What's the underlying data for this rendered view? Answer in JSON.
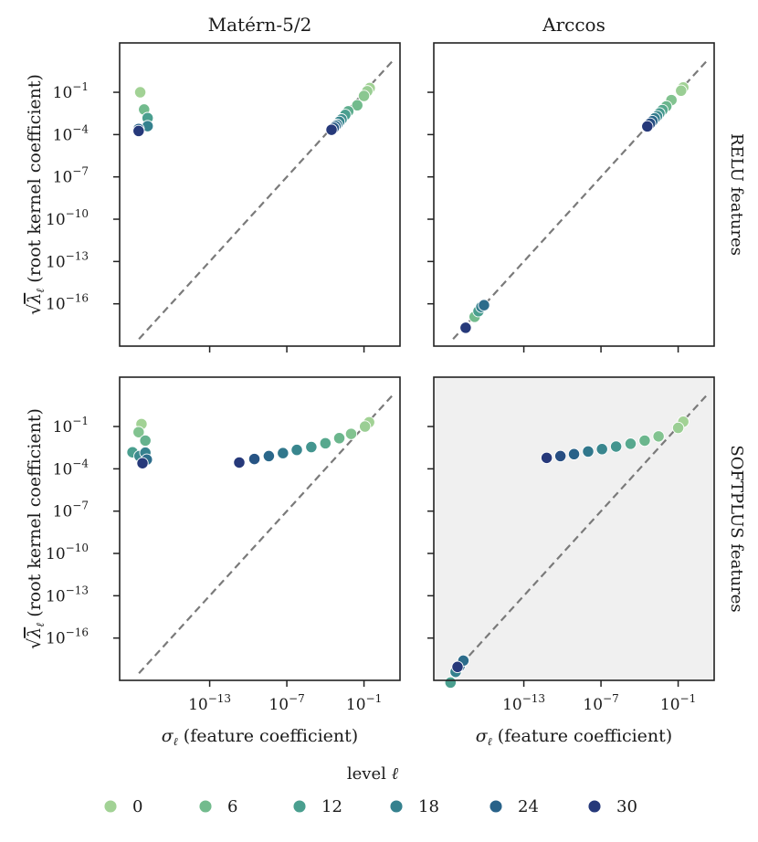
{
  "chart_data": {
    "type": "scatter",
    "x_scale": "log10",
    "y_scale": "log10",
    "xlim_log10": [
      -20,
      1.8
    ],
    "ylim_log10": [
      -19,
      2.5
    ],
    "diagonal": {
      "from_log10": -18.5,
      "to_log10": 1.2,
      "style": "dashed"
    },
    "column_titles": [
      "Matérn-5/2",
      "Arccos"
    ],
    "row_titles": [
      "RELU features",
      "SOFTPLUS features"
    ],
    "xlabel_symbol": "σ",
    "xlabel_sub": "ℓ",
    "xlabel_text": " (feature coefficient)",
    "ylabel_prefix": "√",
    "ylabel_symbol": "λ",
    "ylabel_sub": "ℓ",
    "ylabel_text": " (root kernel coefficient)",
    "x_ticks": [
      -13,
      -7,
      -1
    ],
    "y_ticks": [
      -1,
      -4,
      -7,
      -10,
      -13,
      -16
    ],
    "tick_base": "10",
    "legend": {
      "title_text": "level ",
      "title_symbol": "ℓ",
      "levels": [
        {
          "label": "0",
          "color": "#a2d295"
        },
        {
          "label": "6",
          "color": "#72bb8d"
        },
        {
          "label": "12",
          "color": "#4a9f8f"
        },
        {
          "label": "18",
          "color": "#35818e"
        },
        {
          "label": "24",
          "color": "#286289"
        },
        {
          "label": "30",
          "color": "#26397a"
        }
      ]
    },
    "panels": [
      {
        "row": 0,
        "col": 0,
        "shaded": false,
        "points": [
          {
            "x": 0.28,
            "y": 0.2,
            "level": 0
          },
          {
            "x": 0.18,
            "y": 0.12,
            "level": 1
          },
          {
            "x": 0.1,
            "y": 0.055,
            "level": 3
          },
          {
            "x": 0.03,
            "y": 0.012,
            "level": 6
          },
          {
            "x": 0.006,
            "y": 0.0045,
            "level": 9
          },
          {
            "x": 0.0035,
            "y": 0.0025,
            "level": 12
          },
          {
            "x": 0.0018,
            "y": 0.0012,
            "level": 15
          },
          {
            "x": 0.0012,
            "y": 0.0008,
            "level": 17
          },
          {
            "x": 0.0008,
            "y": 0.0005,
            "level": 20
          },
          {
            "x": 0.0006,
            "y": 0.0004,
            "level": 23
          },
          {
            "x": 0.00045,
            "y": 0.0003,
            "level": 26
          },
          {
            "x": 0.0003,
            "y": 0.00022,
            "level": 30
          },
          {
            "x": 4e-19,
            "y": 0.1,
            "level": 0
          },
          {
            "x": 8e-19,
            "y": 0.006,
            "level": 6
          },
          {
            "x": 1.5e-18,
            "y": 0.0015,
            "level": 12
          },
          {
            "x": 1.5e-18,
            "y": 0.0004,
            "level": 18
          },
          {
            "x": 3e-19,
            "y": 0.00025,
            "level": 24
          },
          {
            "x": 3e-19,
            "y": 0.00018,
            "level": 30
          }
        ]
      },
      {
        "row": 0,
        "col": 1,
        "shaded": false,
        "points": [
          {
            "x": 0.25,
            "y": 0.22,
            "level": 0
          },
          {
            "x": 0.17,
            "y": 0.13,
            "level": 1
          },
          {
            "x": 0.03,
            "y": 0.028,
            "level": 4
          },
          {
            "x": 0.012,
            "y": 0.01,
            "level": 7
          },
          {
            "x": 0.006,
            "y": 0.0055,
            "level": 10
          },
          {
            "x": 0.0035,
            "y": 0.0032,
            "level": 13
          },
          {
            "x": 0.0023,
            "y": 0.002,
            "level": 16
          },
          {
            "x": 0.0015,
            "y": 0.0014,
            "level": 19
          },
          {
            "x": 0.001,
            "y": 0.0009,
            "level": 23
          },
          {
            "x": 0.00065,
            "y": 0.0006,
            "level": 27
          },
          {
            "x": 0.0004,
            "y": 0.00038,
            "level": 30
          },
          {
            "x": 1.5e-17,
            "y": 1.2e-17,
            "level": 6
          },
          {
            "x": 3e-17,
            "y": 3e-17,
            "level": 12
          },
          {
            "x": 5e-17,
            "y": 6e-17,
            "level": 18
          },
          {
            "x": 8e-17,
            "y": 8e-17,
            "level": 22
          },
          {
            "x": 3e-18,
            "y": 2e-18,
            "level": 30
          }
        ]
      },
      {
        "row": 1,
        "col": 0,
        "shaded": false,
        "points": [
          {
            "x": 0.25,
            "y": 0.2,
            "level": 0
          },
          {
            "x": 0.12,
            "y": 0.1,
            "level": 1
          },
          {
            "x": 0.01,
            "y": 0.03,
            "level": 4
          },
          {
            "x": 0.0012,
            "y": 0.015,
            "level": 7
          },
          {
            "x": 0.0001,
            "y": 0.0065,
            "level": 10
          },
          {
            "x": 8e-06,
            "y": 0.0035,
            "level": 14
          },
          {
            "x": 6e-07,
            "y": 0.0022,
            "level": 17
          },
          {
            "x": 5e-08,
            "y": 0.0013,
            "level": 20
          },
          {
            "x": 4e-09,
            "y": 0.0008,
            "level": 23
          },
          {
            "x": 3e-10,
            "y": 0.0005,
            "level": 26
          },
          {
            "x": 2e-11,
            "y": 0.00028,
            "level": 30
          },
          {
            "x": 5e-19,
            "y": 0.15,
            "level": 0
          },
          {
            "x": 3e-19,
            "y": 0.04,
            "level": 4
          },
          {
            "x": 1e-18,
            "y": 0.01,
            "level": 8
          },
          {
            "x": 1e-19,
            "y": 0.0015,
            "level": 12
          },
          {
            "x": 3.5e-19,
            "y": 0.0008,
            "level": 16
          },
          {
            "x": 1e-18,
            "y": 0.0014,
            "level": 18
          },
          {
            "x": 1.3e-18,
            "y": 0.00045,
            "level": 22
          },
          {
            "x": 6e-19,
            "y": 0.00025,
            "level": 30
          }
        ]
      },
      {
        "row": 1,
        "col": 1,
        "shaded": true,
        "points": [
          {
            "x": 0.25,
            "y": 0.22,
            "level": 0
          },
          {
            "x": 0.1,
            "y": 0.08,
            "level": 1
          },
          {
            "x": 0.003,
            "y": 0.02,
            "level": 4
          },
          {
            "x": 0.00025,
            "y": 0.01,
            "level": 7
          },
          {
            "x": 2e-05,
            "y": 0.006,
            "level": 10
          },
          {
            "x": 1.5e-06,
            "y": 0.0038,
            "level": 14
          },
          {
            "x": 1.2e-07,
            "y": 0.0025,
            "level": 17
          },
          {
            "x": 1e-08,
            "y": 0.0017,
            "level": 20
          },
          {
            "x": 8e-10,
            "y": 0.0011,
            "level": 24
          },
          {
            "x": 7e-11,
            "y": 0.0008,
            "level": 27
          },
          {
            "x": 6e-12,
            "y": 0.0006,
            "level": 30
          },
          {
            "x": 2e-19,
            "y": 7e-20,
            "level": 12
          },
          {
            "x": 5e-19,
            "y": 4e-19,
            "level": 18
          },
          {
            "x": 1e-18,
            "y": 1e-18,
            "level": 24
          },
          {
            "x": 2e-18,
            "y": 2.5e-18,
            "level": 22
          },
          {
            "x": 7e-19,
            "y": 9e-19,
            "level": 30
          }
        ]
      }
    ]
  }
}
